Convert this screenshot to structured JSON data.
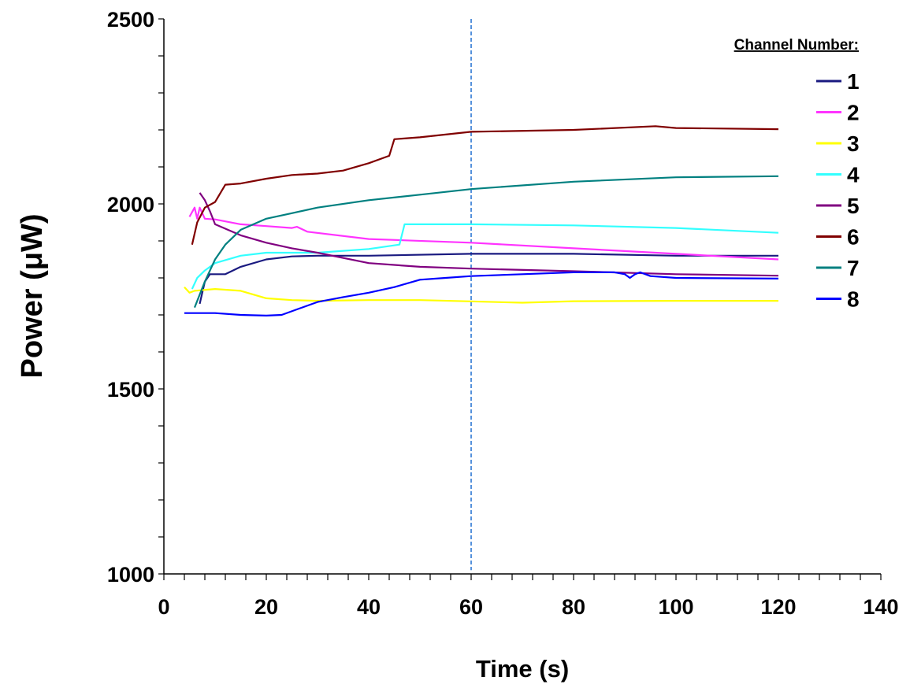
{
  "chart_data": {
    "type": "line",
    "xlabel": "Time (s)",
    "ylabel": "Power (μW)",
    "xlim": [
      0,
      140
    ],
    "ylim": [
      1000,
      2500
    ],
    "x_ticks": [
      "0",
      "20",
      "40",
      "60",
      "80",
      "100",
      "120",
      "140"
    ],
    "y_ticks": [
      "1000",
      "1500",
      "2000",
      "2500"
    ],
    "x_minor_step": 4,
    "y_minor_step": 100,
    "grid": false,
    "reference_line": {
      "x": 60,
      "style": "dashed",
      "color": "#1f6fd0"
    },
    "legend": {
      "title": "Channel Number:",
      "position": "top-right"
    },
    "series": [
      {
        "name": "1",
        "color": "#1a1a80",
        "points": [
          [
            7,
            1730
          ],
          [
            8,
            1790
          ],
          [
            9,
            1810
          ],
          [
            12,
            1810
          ],
          [
            15,
            1830
          ],
          [
            20,
            1850
          ],
          [
            25,
            1858
          ],
          [
            30,
            1860
          ],
          [
            40,
            1860
          ],
          [
            60,
            1865
          ],
          [
            80,
            1865
          ],
          [
            100,
            1860
          ],
          [
            120,
            1860
          ]
        ]
      },
      {
        "name": "2",
        "color": "#ff33ff",
        "points": [
          [
            5,
            1965
          ],
          [
            6,
            1990
          ],
          [
            6.5,
            1960
          ],
          [
            7,
            1990
          ],
          [
            8,
            1960
          ],
          [
            10,
            1958
          ],
          [
            15,
            1945
          ],
          [
            20,
            1940
          ],
          [
            25,
            1935
          ],
          [
            26,
            1938
          ],
          [
            28,
            1925
          ],
          [
            40,
            1905
          ],
          [
            60,
            1895
          ],
          [
            80,
            1880
          ],
          [
            100,
            1865
          ],
          [
            120,
            1850
          ]
        ]
      },
      {
        "name": "3",
        "color": "#ffff00",
        "points": [
          [
            4,
            1775
          ],
          [
            5,
            1760
          ],
          [
            6,
            1765
          ],
          [
            10,
            1770
          ],
          [
            15,
            1765
          ],
          [
            20,
            1745
          ],
          [
            25,
            1740
          ],
          [
            30,
            1738
          ],
          [
            40,
            1740
          ],
          [
            50,
            1740
          ],
          [
            70,
            1733
          ],
          [
            80,
            1737
          ],
          [
            100,
            1738
          ],
          [
            120,
            1738
          ]
        ]
      },
      {
        "name": "4",
        "color": "#33ffff",
        "points": [
          [
            5.5,
            1770
          ],
          [
            6.5,
            1800
          ],
          [
            8,
            1820
          ],
          [
            10,
            1840
          ],
          [
            15,
            1860
          ],
          [
            20,
            1868
          ],
          [
            30,
            1868
          ],
          [
            40,
            1878
          ],
          [
            46,
            1890
          ],
          [
            47,
            1945
          ],
          [
            60,
            1945
          ],
          [
            80,
            1942
          ],
          [
            100,
            1935
          ],
          [
            120,
            1922
          ]
        ]
      },
      {
        "name": "5",
        "color": "#800080",
        "points": [
          [
            7,
            2030
          ],
          [
            8,
            2010
          ],
          [
            9,
            1980
          ],
          [
            10,
            1945
          ],
          [
            15,
            1915
          ],
          [
            20,
            1895
          ],
          [
            25,
            1880
          ],
          [
            30,
            1868
          ],
          [
            40,
            1840
          ],
          [
            50,
            1830
          ],
          [
            60,
            1825
          ],
          [
            80,
            1818
          ],
          [
            100,
            1810
          ],
          [
            120,
            1806
          ]
        ]
      },
      {
        "name": "6",
        "color": "#800000",
        "points": [
          [
            5.5,
            1890
          ],
          [
            6.5,
            1950
          ],
          [
            8,
            1990
          ],
          [
            10,
            2005
          ],
          [
            12,
            2052
          ],
          [
            15,
            2055
          ],
          [
            20,
            2068
          ],
          [
            25,
            2078
          ],
          [
            30,
            2082
          ],
          [
            35,
            2090
          ],
          [
            40,
            2110
          ],
          [
            44,
            2130
          ],
          [
            45,
            2175
          ],
          [
            50,
            2180
          ],
          [
            60,
            2195
          ],
          [
            80,
            2200
          ],
          [
            96,
            2210
          ],
          [
            100,
            2205
          ],
          [
            120,
            2202
          ]
        ]
      },
      {
        "name": "7",
        "color": "#008080",
        "points": [
          [
            6,
            1720
          ],
          [
            8,
            1790
          ],
          [
            10,
            1850
          ],
          [
            12,
            1890
          ],
          [
            15,
            1930
          ],
          [
            20,
            1960
          ],
          [
            25,
            1975
          ],
          [
            30,
            1990
          ],
          [
            40,
            2010
          ],
          [
            50,
            2025
          ],
          [
            60,
            2040
          ],
          [
            80,
            2060
          ],
          [
            100,
            2072
          ],
          [
            120,
            2075
          ]
        ]
      },
      {
        "name": "8",
        "color": "#0000ff",
        "points": [
          [
            4,
            1705
          ],
          [
            10,
            1705
          ],
          [
            15,
            1700
          ],
          [
            20,
            1698
          ],
          [
            23,
            1700
          ],
          [
            27,
            1720
          ],
          [
            30,
            1735
          ],
          [
            35,
            1748
          ],
          [
            40,
            1760
          ],
          [
            45,
            1775
          ],
          [
            50,
            1795
          ],
          [
            55,
            1800
          ],
          [
            60,
            1805
          ],
          [
            70,
            1810
          ],
          [
            80,
            1815
          ],
          [
            88,
            1815
          ],
          [
            90,
            1810
          ],
          [
            91,
            1800
          ],
          [
            92,
            1810
          ],
          [
            93,
            1815
          ],
          [
            95,
            1805
          ],
          [
            100,
            1800
          ],
          [
            120,
            1798
          ]
        ]
      }
    ]
  }
}
